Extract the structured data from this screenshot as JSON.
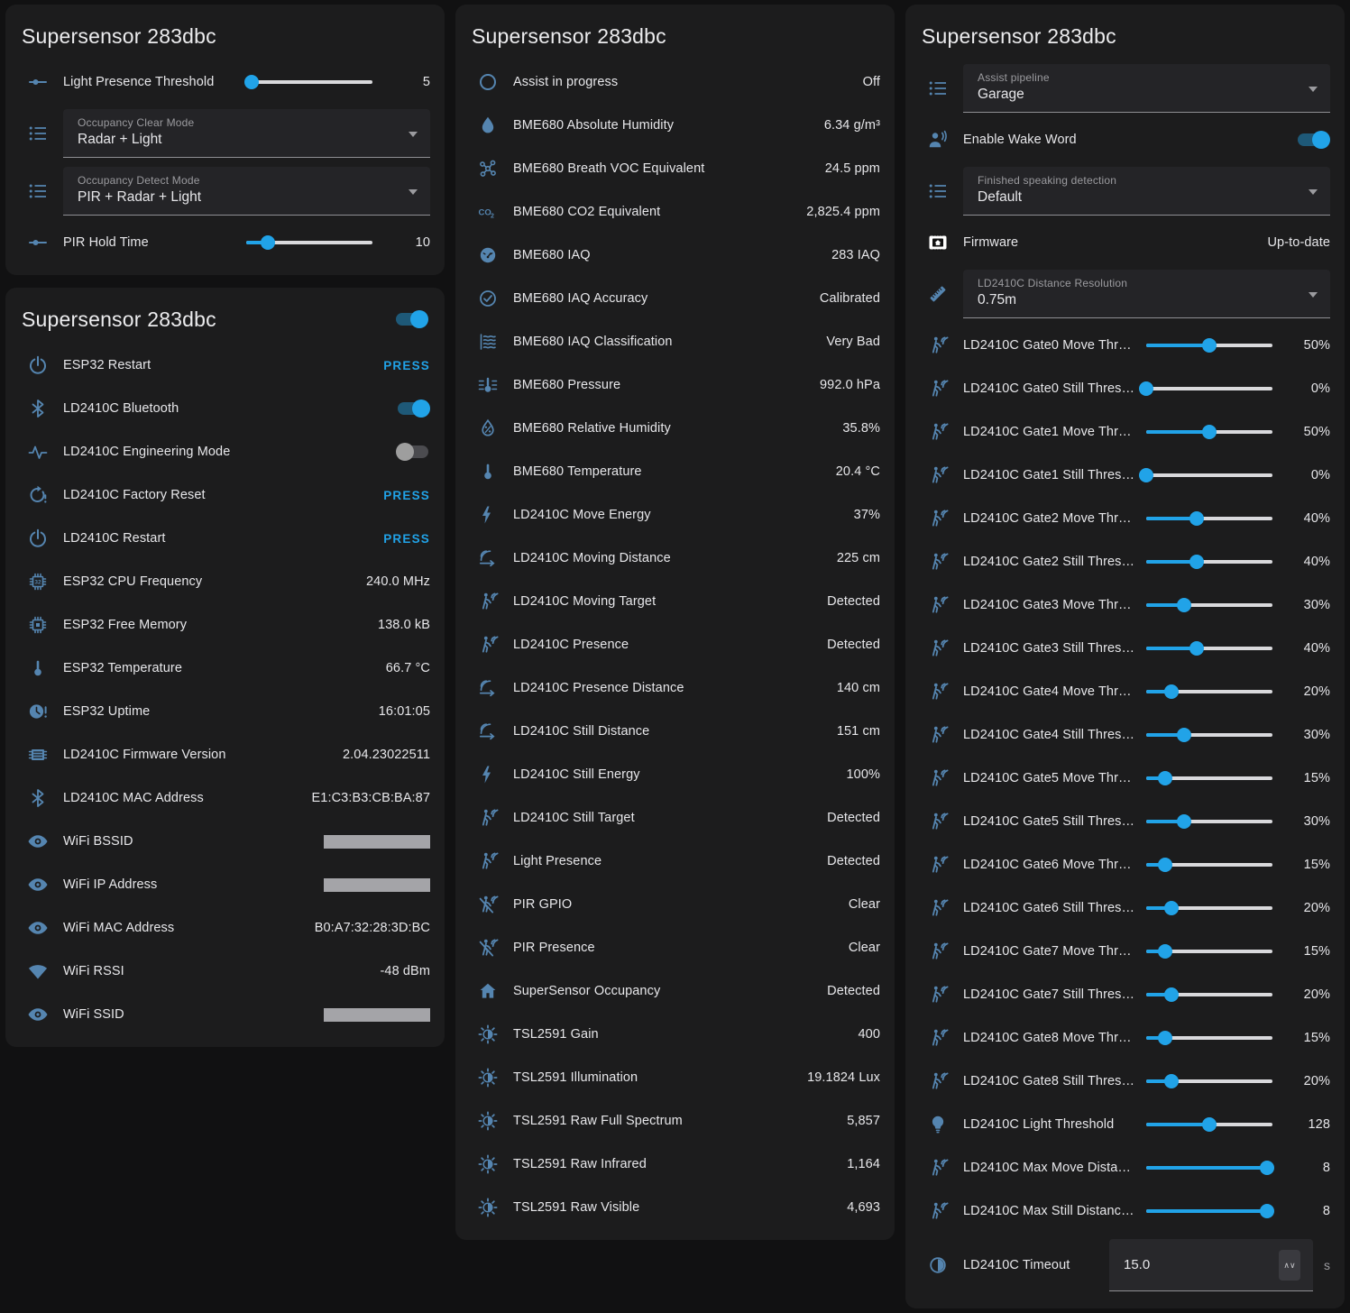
{
  "colors": {
    "page_bg": "#111112",
    "card_bg": "#1c1c1d",
    "text": "#e7e7ea",
    "secondary_text": "#9b9b9f",
    "icon": "#5585b0",
    "accent": "#21a3e8",
    "slider_track": "#d9d9dc",
    "toggle_off_thumb": "#9e9e9e",
    "toggle_off_track": "#4b4b4f",
    "redacted_bar": "#a4a4a8",
    "select_bg": "#242427",
    "select_underline": "#8f8f93",
    "numbox_bg": "#28282b",
    "stepper_bg": "#3a3a3f"
  },
  "cards": {
    "controls": {
      "title": "Supersensor 283dbc",
      "rows": [
        {
          "type": "slider",
          "icon": "tune",
          "label": "Light Presence Threshold",
          "pct": 4,
          "value": "5"
        },
        {
          "type": "select",
          "icon": "list",
          "label": "Occupancy Clear Mode",
          "value": "Radar + Light"
        },
        {
          "type": "select",
          "icon": "list",
          "label": "Occupancy Detect Mode",
          "value": "PIR + Radar + Light"
        },
        {
          "type": "slider",
          "icon": "tune",
          "label": "PIR Hold Time",
          "pct": 17,
          "value": "10"
        }
      ]
    },
    "diagnostics": {
      "title": "Supersensor 283dbc",
      "header_toggle": {
        "on": true
      },
      "rows": [
        {
          "type": "press",
          "icon": "power",
          "label": "ESP32 Restart",
          "value": "PRESS"
        },
        {
          "type": "toggle",
          "icon": "bluetooth",
          "label": "LD2410C Bluetooth",
          "on": true
        },
        {
          "type": "toggle",
          "icon": "pulse",
          "label": "LD2410C Engineering Mode",
          "on": false
        },
        {
          "type": "press",
          "icon": "restart-alert",
          "label": "LD2410C Factory Reset",
          "value": "PRESS"
        },
        {
          "type": "press",
          "icon": "power",
          "label": "LD2410C Restart",
          "value": "PRESS"
        },
        {
          "type": "value",
          "icon": "chip32",
          "label": "ESP32 CPU Frequency",
          "value": "240.0 MHz"
        },
        {
          "type": "value",
          "icon": "memory",
          "label": "ESP32 Free Memory",
          "value": "138.0 kB"
        },
        {
          "type": "value",
          "icon": "thermometer",
          "label": "ESP32 Temperature",
          "value": "66.7 °C"
        },
        {
          "type": "value",
          "icon": "clock-alert",
          "label": "ESP32 Uptime",
          "value": "16:01:05"
        },
        {
          "type": "value",
          "icon": "chip-lines",
          "label": "LD2410C Firmware Version",
          "value": "2.04.23022511"
        },
        {
          "type": "value",
          "icon": "bluetooth",
          "label": "LD2410C MAC Address",
          "value": "E1:C3:B3:CB:BA:87"
        },
        {
          "type": "redacted",
          "icon": "eye",
          "label": "WiFi BSSID"
        },
        {
          "type": "redacted",
          "icon": "eye",
          "label": "WiFi IP Address"
        },
        {
          "type": "value",
          "icon": "eye",
          "label": "WiFi MAC Address",
          "value": "B0:A7:32:28:3D:BC"
        },
        {
          "type": "value",
          "icon": "wifi",
          "label": "WiFi RSSI",
          "value": "-48 dBm"
        },
        {
          "type": "redacted",
          "icon": "eye",
          "label": "WiFi SSID"
        }
      ]
    },
    "sensors": {
      "title": "Supersensor 283dbc",
      "rows": [
        {
          "type": "value",
          "icon": "circle",
          "label": "Assist in progress",
          "value": "Off"
        },
        {
          "type": "value",
          "icon": "water",
          "label": "BME680 Absolute Humidity",
          "value": "6.34 g/m³"
        },
        {
          "type": "value",
          "icon": "molecule",
          "label": "BME680 Breath VOC Equivalent",
          "value": "24.5 ppm"
        },
        {
          "type": "value",
          "icon": "co2",
          "label": "BME680 CO2 Equivalent",
          "value": "2,825.4 ppm"
        },
        {
          "type": "value",
          "icon": "gauge",
          "label": "BME680 IAQ",
          "value": "283 IAQ"
        },
        {
          "type": "value",
          "icon": "check-circle",
          "label": "BME680 IAQ Accuracy",
          "value": "Calibrated"
        },
        {
          "type": "value",
          "icon": "air-filter",
          "label": "BME680 IAQ Classification",
          "value": "Very Bad"
        },
        {
          "type": "value",
          "icon": "pressure",
          "label": "BME680 Pressure",
          "value": "992.0 hPa"
        },
        {
          "type": "value",
          "icon": "water-percent",
          "label": "BME680 Relative Humidity",
          "value": "35.8%"
        },
        {
          "type": "value",
          "icon": "thermometer",
          "label": "BME680 Temperature",
          "value": "20.4 °C"
        },
        {
          "type": "value",
          "icon": "flash",
          "label": "LD2410C Move Energy",
          "value": "37%"
        },
        {
          "type": "value",
          "icon": "signal-distance",
          "label": "LD2410C Moving Distance",
          "value": "225 cm"
        },
        {
          "type": "value",
          "icon": "motion",
          "label": "LD2410C Moving Target",
          "value": "Detected"
        },
        {
          "type": "value",
          "icon": "motion",
          "label": "LD2410C Presence",
          "value": "Detected"
        },
        {
          "type": "value",
          "icon": "signal-distance",
          "label": "LD2410C Presence Distance",
          "value": "140 cm"
        },
        {
          "type": "value",
          "icon": "signal-distance",
          "label": "LD2410C Still Distance",
          "value": "151 cm"
        },
        {
          "type": "value",
          "icon": "flash",
          "label": "LD2410C Still Energy",
          "value": "100%"
        },
        {
          "type": "value",
          "icon": "motion",
          "label": "LD2410C Still Target",
          "value": "Detected"
        },
        {
          "type": "value",
          "icon": "motion",
          "label": "Light Presence",
          "value": "Detected"
        },
        {
          "type": "value",
          "icon": "motion-off",
          "label": "PIR GPIO",
          "value": "Clear"
        },
        {
          "type": "value",
          "icon": "motion-off",
          "label": "PIR Presence",
          "value": "Clear"
        },
        {
          "type": "value",
          "icon": "home",
          "label": "SuperSensor Occupancy",
          "value": "Detected"
        },
        {
          "type": "value",
          "icon": "brightness",
          "label": "TSL2591 Gain",
          "value": "400"
        },
        {
          "type": "value",
          "icon": "brightness",
          "label": "TSL2591 Illumination",
          "value": "19.1824 Lux"
        },
        {
          "type": "value",
          "icon": "brightness",
          "label": "TSL2591 Raw Full Spectrum",
          "value": "5,857"
        },
        {
          "type": "value",
          "icon": "brightness",
          "label": "TSL2591 Raw Infrared",
          "value": "1,164"
        },
        {
          "type": "value",
          "icon": "brightness",
          "label": "TSL2591 Raw Visible",
          "value": "4,693"
        }
      ]
    },
    "settings": {
      "title": "Supersensor 283dbc",
      "rows": [
        {
          "type": "select",
          "icon": "list",
          "label": "Assist pipeline",
          "value": "Garage"
        },
        {
          "type": "toggle",
          "icon": "voice",
          "label": "Enable Wake Word",
          "on": true
        },
        {
          "type": "select",
          "icon": "list",
          "label": "Finished speaking detection",
          "value": "Default"
        },
        {
          "type": "value",
          "icon": "firmware",
          "label": "Firmware",
          "value": "Up-to-date"
        },
        {
          "type": "select",
          "icon": "ruler",
          "label": "LD2410C Distance Resolution",
          "value": "0.75m"
        },
        {
          "type": "slider",
          "icon": "motion",
          "label": "LD2410C Gate0 Move Thr…",
          "pct": 50,
          "value": "50%"
        },
        {
          "type": "slider",
          "icon": "motion",
          "label": "LD2410C Gate0 Still Thres…",
          "pct": 0,
          "value": "0%"
        },
        {
          "type": "slider",
          "icon": "motion",
          "label": "LD2410C Gate1 Move Thr…",
          "pct": 50,
          "value": "50%"
        },
        {
          "type": "slider",
          "icon": "motion",
          "label": "LD2410C Gate1 Still Thres…",
          "pct": 0,
          "value": "0%"
        },
        {
          "type": "slider",
          "icon": "motion",
          "label": "LD2410C Gate2 Move Thr…",
          "pct": 40,
          "value": "40%"
        },
        {
          "type": "slider",
          "icon": "motion",
          "label": "LD2410C Gate2 Still Thres…",
          "pct": 40,
          "value": "40%"
        },
        {
          "type": "slider",
          "icon": "motion",
          "label": "LD2410C Gate3 Move Thr…",
          "pct": 30,
          "value": "30%"
        },
        {
          "type": "slider",
          "icon": "motion",
          "label": "LD2410C Gate3 Still Thres…",
          "pct": 40,
          "value": "40%"
        },
        {
          "type": "slider",
          "icon": "motion",
          "label": "LD2410C Gate4 Move Thr…",
          "pct": 20,
          "value": "20%"
        },
        {
          "type": "slider",
          "icon": "motion",
          "label": "LD2410C Gate4 Still Thres…",
          "pct": 30,
          "value": "30%"
        },
        {
          "type": "slider",
          "icon": "motion",
          "label": "LD2410C Gate5 Move Thr…",
          "pct": 15,
          "value": "15%"
        },
        {
          "type": "slider",
          "icon": "motion",
          "label": "LD2410C Gate5 Still Thres…",
          "pct": 30,
          "value": "30%"
        },
        {
          "type": "slider",
          "icon": "motion",
          "label": "LD2410C Gate6 Move Thr…",
          "pct": 15,
          "value": "15%"
        },
        {
          "type": "slider",
          "icon": "motion",
          "label": "LD2410C Gate6 Still Thres…",
          "pct": 20,
          "value": "20%"
        },
        {
          "type": "slider",
          "icon": "motion",
          "label": "LD2410C Gate7 Move Thr…",
          "pct": 15,
          "value": "15%"
        },
        {
          "type": "slider",
          "icon": "motion",
          "label": "LD2410C Gate7 Still Thres…",
          "pct": 20,
          "value": "20%"
        },
        {
          "type": "slider",
          "icon": "motion",
          "label": "LD2410C Gate8 Move Thr…",
          "pct": 15,
          "value": "15%"
        },
        {
          "type": "slider",
          "icon": "motion",
          "label": "LD2410C Gate8 Still Thres…",
          "pct": 20,
          "value": "20%"
        },
        {
          "type": "slider",
          "icon": "bulb",
          "label": "LD2410C Light Threshold",
          "pct": 50,
          "value": "128"
        },
        {
          "type": "slider",
          "icon": "motion",
          "label": "LD2410C Max Move Dista…",
          "pct": 96,
          "value": "8"
        },
        {
          "type": "slider",
          "icon": "motion",
          "label": "LD2410C Max Still Distanc…",
          "pct": 96,
          "value": "8"
        },
        {
          "type": "number",
          "icon": "timer",
          "label": "LD2410C Timeout",
          "value": "15.0",
          "unit": "s",
          "stepper": "∧∨"
        }
      ]
    }
  }
}
